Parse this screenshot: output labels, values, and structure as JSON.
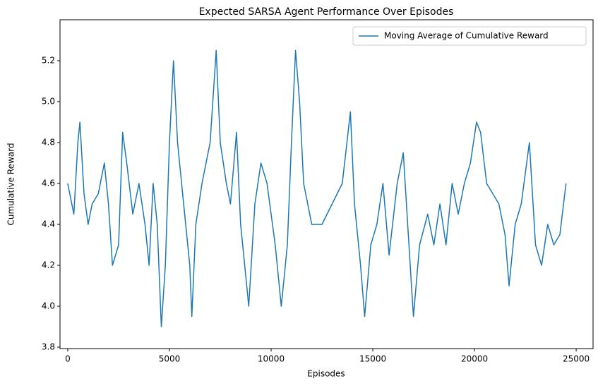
{
  "chart_data": {
    "type": "line",
    "title": "Expected SARSA Agent Performance Over Episodes",
    "x_label": "Episodes",
    "y_label": "Cumulative Reward",
    "legend": "upper right",
    "x": [
      0,
      300,
      500,
      600,
      800,
      1000,
      1200,
      1500,
      1800,
      2000,
      2200,
      2500,
      2700,
      2900,
      3200,
      3500,
      3800,
      4000,
      4200,
      4400,
      4600,
      4800,
      5000,
      5200,
      5400,
      5700,
      6000,
      6100,
      6300,
      6600,
      7000,
      7300,
      7500,
      7800,
      8000,
      8300,
      8500,
      8700,
      8900,
      9200,
      9500,
      9800,
      10200,
      10500,
      10800,
      11000,
      11200,
      11400,
      11600,
      12000,
      12500,
      13000,
      13500,
      13900,
      14100,
      14400,
      14600,
      14900,
      15200,
      15500,
      15800,
      16200,
      16500,
      16900,
      17000,
      17300,
      17700,
      18000,
      18300,
      18600,
      18900,
      19200,
      19500,
      19800,
      20100,
      20300,
      20600,
      20900,
      21200,
      21500,
      21700,
      22000,
      22300,
      22700,
      23000,
      23300,
      23600,
      23900,
      24200,
      24500
    ],
    "series": [
      {
        "name": "Moving Average of Cumulative Reward",
        "color": "#1f77b4",
        "values": [
          4.6,
          4.45,
          4.8,
          4.9,
          4.55,
          4.4,
          4.5,
          4.55,
          4.7,
          4.5,
          4.2,
          4.3,
          4.85,
          4.7,
          4.45,
          4.6,
          4.4,
          4.2,
          4.6,
          4.4,
          3.9,
          4.2,
          4.8,
          5.2,
          4.8,
          4.5,
          4.2,
          3.95,
          4.4,
          4.6,
          4.8,
          5.25,
          4.8,
          4.6,
          4.5,
          4.85,
          4.4,
          4.2,
          4.0,
          4.5,
          4.7,
          4.6,
          4.3,
          4.0,
          4.3,
          4.8,
          5.25,
          5.0,
          4.6,
          4.4,
          4.4,
          4.5,
          4.6,
          4.95,
          4.5,
          4.2,
          3.95,
          4.3,
          4.4,
          4.6,
          4.25,
          4.6,
          4.75,
          4.1,
          3.95,
          4.3,
          4.45,
          4.3,
          4.5,
          4.3,
          4.6,
          4.45,
          4.6,
          4.7,
          4.9,
          4.85,
          4.6,
          4.55,
          4.5,
          4.35,
          4.1,
          4.4,
          4.5,
          4.8,
          4.3,
          4.2,
          4.4,
          4.3,
          4.35,
          4.6
        ]
      }
    ],
    "xlim": [
      -380,
      25830
    ],
    "xticks": [
      0,
      5000,
      10000,
      15000,
      20000,
      25000
    ],
    "ylim": [
      3.793,
      5.4
    ],
    "yticks": [
      3.8,
      {
        "value": 4,
        "label": "4.0"
      },
      4.2,
      4.4,
      4.6,
      4.8,
      {
        "value": 5,
        "label": "5.0"
      },
      5.2
    ]
  }
}
